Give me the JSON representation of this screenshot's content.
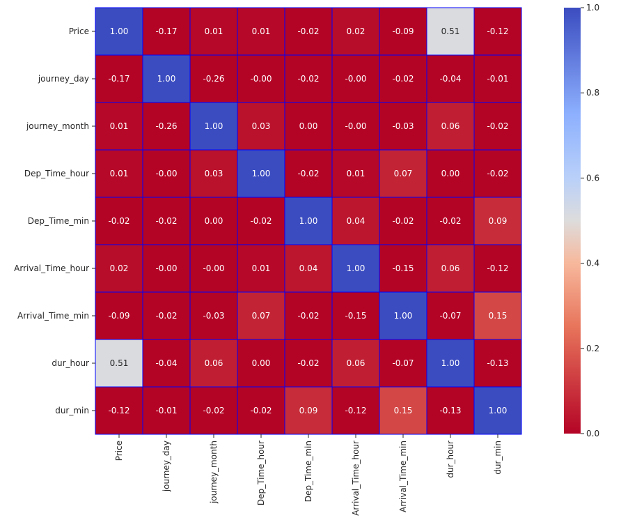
{
  "chart_data": {
    "type": "heatmap",
    "title": "",
    "xlabel": "",
    "ylabel": "",
    "colormap": "coolwarm_r",
    "cell_border_color": "#0000ff",
    "vmin": 0.0,
    "vmax": 1.0,
    "labels": [
      "Price",
      "journey_day",
      "journey_month",
      "Dep_Time_hour",
      "Dep_Time_min",
      "Arrival_Time_hour",
      "Arrival_Time_min",
      "dur_hour",
      "dur_min"
    ],
    "values": [
      [
        1.0,
        -0.17,
        0.01,
        0.01,
        -0.02,
        0.02,
        -0.09,
        0.51,
        -0.12
      ],
      [
        -0.17,
        1.0,
        -0.26,
        -0.0,
        -0.02,
        -0.0,
        -0.02,
        -0.04,
        -0.01
      ],
      [
        0.01,
        -0.26,
        1.0,
        0.03,
        0.0,
        -0.0,
        -0.03,
        0.06,
        -0.02
      ],
      [
        0.01,
        -0.0,
        0.03,
        1.0,
        -0.02,
        0.01,
        0.07,
        0.0,
        -0.02
      ],
      [
        -0.02,
        -0.02,
        0.0,
        -0.02,
        1.0,
        0.04,
        -0.02,
        -0.02,
        0.09
      ],
      [
        0.02,
        -0.0,
        -0.0,
        0.01,
        0.04,
        1.0,
        -0.15,
        0.06,
        -0.12
      ],
      [
        -0.09,
        -0.02,
        -0.03,
        0.07,
        -0.02,
        -0.15,
        1.0,
        -0.07,
        0.15
      ],
      [
        0.51,
        -0.04,
        0.06,
        0.0,
        -0.02,
        0.06,
        -0.07,
        1.0,
        -0.13
      ],
      [
        -0.12,
        -0.01,
        -0.02,
        -0.02,
        0.09,
        -0.12,
        0.15,
        -0.13,
        1.0
      ]
    ],
    "annotations": [
      [
        "1.00",
        "-0.17",
        "0.01",
        "0.01",
        "-0.02",
        "0.02",
        "-0.09",
        "0.51",
        "-0.12"
      ],
      [
        "-0.17",
        "1.00",
        "-0.26",
        "-0.00",
        "-0.02",
        "-0.00",
        "-0.02",
        "-0.04",
        "-0.01"
      ],
      [
        "0.01",
        "-0.26",
        "1.00",
        "0.03",
        "0.00",
        "-0.00",
        "-0.03",
        "0.06",
        "-0.02"
      ],
      [
        "0.01",
        "-0.00",
        "0.03",
        "1.00",
        "-0.02",
        "0.01",
        "0.07",
        "0.00",
        "-0.02"
      ],
      [
        "-0.02",
        "-0.02",
        "0.00",
        "-0.02",
        "1.00",
        "0.04",
        "-0.02",
        "-0.02",
        "0.09"
      ],
      [
        "0.02",
        "-0.00",
        "-0.00",
        "0.01",
        "0.04",
        "1.00",
        "-0.15",
        "0.06",
        "-0.12"
      ],
      [
        "-0.09",
        "-0.02",
        "-0.03",
        "0.07",
        "-0.02",
        "-0.15",
        "1.00",
        "-0.07",
        "0.15"
      ],
      [
        "0.51",
        "-0.04",
        "0.06",
        "0.00",
        "-0.02",
        "0.06",
        "-0.07",
        "1.00",
        "-0.13"
      ],
      [
        "-0.12",
        "-0.01",
        "-0.02",
        "-0.02",
        "0.09",
        "-0.12",
        "0.15",
        "-0.13",
        "1.00"
      ]
    ],
    "colorbar": {
      "ticks": [
        "0.0",
        "0.2",
        "0.4",
        "0.6",
        "0.8",
        "1.0"
      ]
    }
  }
}
